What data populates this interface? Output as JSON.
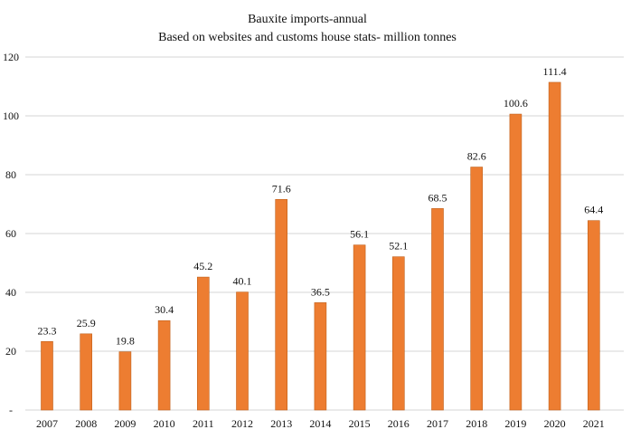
{
  "chart_data": {
    "type": "bar",
    "title": "Bauxite imports-annual",
    "subtitle": "Based on websites and customs house stats- million tonnes",
    "categories": [
      "2007",
      "2008",
      "2009",
      "2010",
      "2011",
      "2012",
      "2013",
      "2014",
      "2015",
      "2016",
      "2017",
      "2018",
      "2019",
      "2020",
      "2021"
    ],
    "values": [
      23.3,
      25.9,
      19.8,
      30.4,
      45.2,
      40.1,
      71.6,
      36.5,
      56.1,
      52.1,
      68.5,
      82.6,
      100.6,
      111.4,
      64.4
    ],
    "value_labels": [
      "23.3",
      "25.9",
      "19.8",
      "30.4",
      "45.2",
      "40.1",
      "71.6",
      "36.5",
      "56.1",
      "52.1",
      "68.5",
      "82.6",
      "100.6",
      "111.4",
      "64.4"
    ],
    "y_ticks": [
      "-",
      "20",
      "40",
      "60",
      "80",
      "100",
      "120"
    ],
    "ylim": [
      0,
      120
    ],
    "grid": true,
    "legend": "none",
    "bar_color": "#ed7d31"
  }
}
